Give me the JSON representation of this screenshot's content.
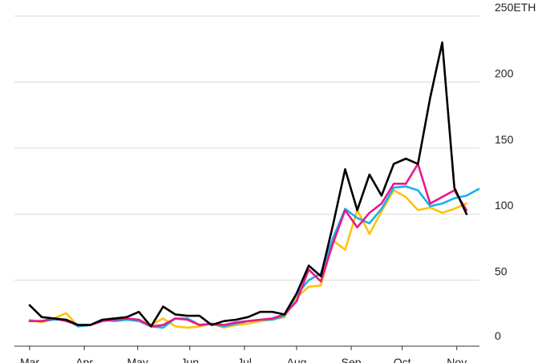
{
  "chart_data": {
    "type": "line",
    "yunit": "ETH",
    "ylim": [
      0,
      250
    ],
    "yticks": [
      0,
      50,
      100,
      150,
      200,
      250
    ],
    "ytick_labels": [
      "0",
      "50",
      "100",
      "150",
      "200",
      "250ETH"
    ],
    "xlim": [
      0,
      37
    ],
    "month_ticks": [
      {
        "label": "Mar",
        "x": 0
      },
      {
        "label": "Apr",
        "x": 4.5
      },
      {
        "label": "May",
        "x": 8.9
      },
      {
        "label": "Jun",
        "x": 13.2
      },
      {
        "label": "Jul",
        "x": 17.7
      },
      {
        "label": "Aug",
        "x": 22
      },
      {
        "label": "Sep",
        "x": 26.5
      },
      {
        "label": "Oct",
        "x": 30.7
      },
      {
        "label": "Nov",
        "x": 35.2
      }
    ],
    "grid": "horizontal",
    "legend": "none",
    "series": [
      {
        "color": "#000000",
        "x": [
          0,
          1,
          2,
          3,
          4,
          5,
          6,
          7,
          8,
          9,
          10,
          11,
          12,
          13,
          14,
          15,
          16,
          17,
          18,
          19,
          20,
          21,
          22,
          23,
          24,
          25,
          26,
          27,
          28,
          29,
          30,
          31,
          32,
          33,
          34,
          35,
          36,
          37
        ],
        "values": [
          31,
          22,
          21,
          20,
          16,
          16,
          20,
          21,
          22,
          26,
          15,
          30,
          24,
          23,
          23,
          16,
          19,
          20,
          22,
          26,
          26,
          24,
          40,
          61,
          53,
          92,
          134,
          103,
          130,
          114,
          138,
          142,
          138,
          188,
          230,
          120,
          100,
          null
        ]
      },
      {
        "color": "#e8198b",
        "x": [
          0,
          1,
          2,
          3,
          4,
          5,
          6,
          7,
          8,
          9,
          10,
          11,
          12,
          13,
          14,
          15,
          16,
          17,
          18,
          19,
          20,
          21,
          22,
          23,
          24,
          25,
          26,
          27,
          28,
          29,
          30,
          31,
          32,
          33,
          34,
          35,
          36,
          37
        ],
        "values": [
          19,
          19,
          21,
          19,
          16,
          16,
          19,
          20,
          21,
          20,
          15,
          16,
          21,
          20,
          16,
          17,
          16,
          18,
          19,
          20,
          21,
          24,
          34,
          58,
          49,
          78,
          103,
          90,
          101,
          108,
          123,
          123,
          138,
          108,
          113,
          118,
          103,
          null
        ]
      },
      {
        "color": "#1ab1e6",
        "x": [
          0,
          1,
          2,
          3,
          4,
          5,
          6,
          7,
          8,
          9,
          10,
          11,
          12,
          13,
          14,
          15,
          16,
          17,
          18,
          19,
          20,
          21,
          22,
          23,
          24,
          25,
          26,
          27,
          28,
          29,
          30,
          31,
          32,
          33,
          34,
          35,
          36,
          37
        ],
        "values": [
          19,
          19,
          20,
          20,
          15,
          16,
          20,
          19,
          20,
          19,
          15,
          14,
          21,
          21,
          16,
          17,
          15,
          17,
          19,
          20,
          20,
          23,
          39,
          50,
          55,
          82,
          104,
          97,
          93,
          104,
          120,
          121,
          118,
          106,
          108,
          112,
          114,
          119
        ]
      },
      {
        "color": "#ffc20e",
        "x": [
          0,
          1,
          2,
          3,
          4,
          5,
          6,
          7,
          8,
          9,
          10,
          11,
          12,
          13,
          14,
          15,
          16,
          17,
          18,
          19,
          20,
          21,
          22,
          23,
          24,
          25,
          26,
          27,
          28,
          29,
          30,
          31,
          32,
          33,
          34,
          35,
          36,
          37
        ],
        "values": [
          20,
          18,
          21,
          25,
          15,
          16,
          20,
          21,
          21,
          20,
          16,
          21,
          15,
          14,
          15,
          17,
          14,
          16,
          17,
          19,
          20,
          22,
          37,
          45,
          46,
          80,
          73,
          103,
          85,
          102,
          118,
          113,
          103,
          105,
          101,
          104,
          108,
          null
        ]
      }
    ]
  }
}
